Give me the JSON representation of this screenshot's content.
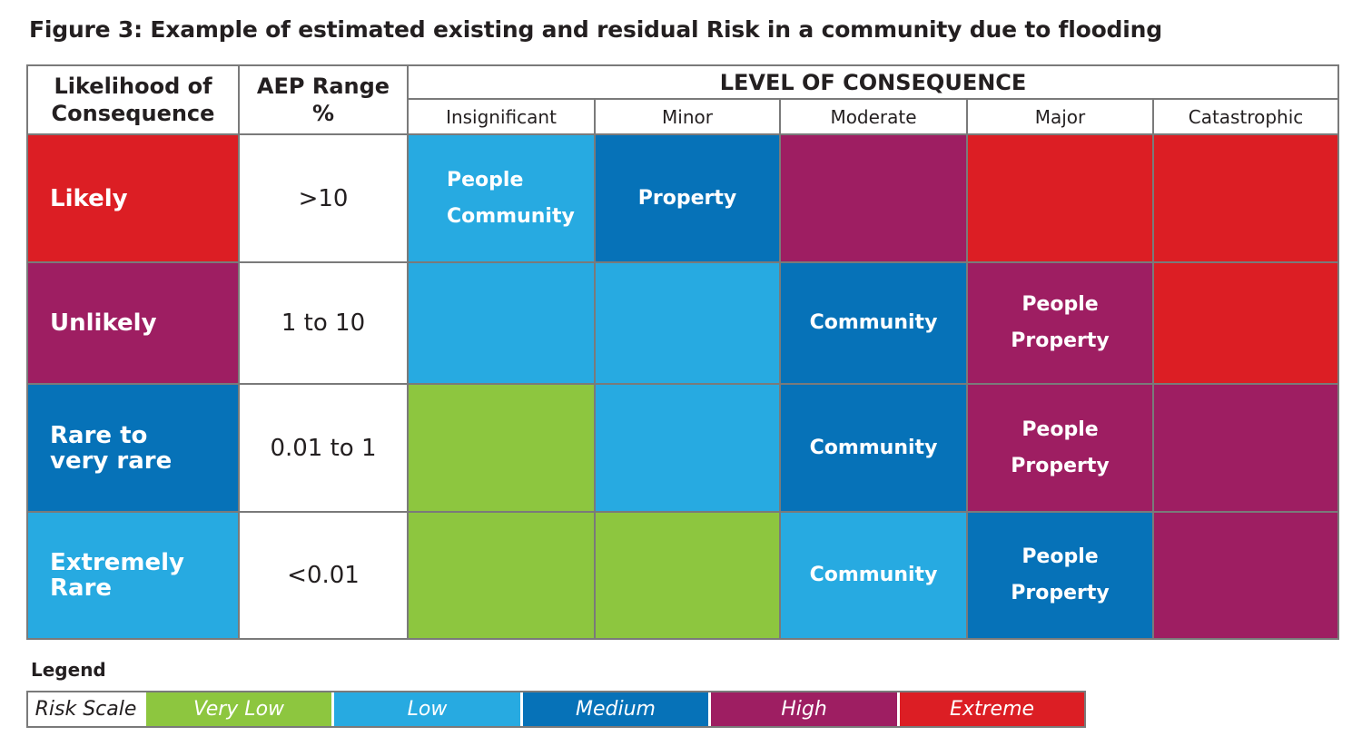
{
  "title": "Figure 3: Example of estimated existing and residual Risk in a community due to flooding",
  "headers": {
    "likelihood_line1": "Likelihood of",
    "likelihood_line2": "Consequence",
    "aep_line1": "AEP Range",
    "aep_line2": "%",
    "level_of_consequence": "LEVEL OF CONSEQUENCE",
    "consequences": [
      "Insignificant",
      "Minor",
      "Moderate",
      "Major",
      "Catastrophic"
    ]
  },
  "rows": [
    {
      "label_lines": [
        "Likely"
      ],
      "aep": ">10",
      "cells": [
        {
          "risk": "Low",
          "items": [
            "People",
            "Community"
          ]
        },
        {
          "risk": "Medium",
          "items": [
            "Property"
          ]
        },
        {
          "risk": "High",
          "items": []
        },
        {
          "risk": "Extreme",
          "items": []
        },
        {
          "risk": "Extreme",
          "items": []
        }
      ]
    },
    {
      "label_lines": [
        "Unlikely"
      ],
      "aep": "1 to 10",
      "cells": [
        {
          "risk": "Low",
          "items": []
        },
        {
          "risk": "Low",
          "items": []
        },
        {
          "risk": "Medium",
          "items": [
            "Community"
          ]
        },
        {
          "risk": "High",
          "items": [
            "People",
            "Property"
          ]
        },
        {
          "risk": "Extreme",
          "items": []
        }
      ]
    },
    {
      "label_lines": [
        "Rare to",
        "very rare"
      ],
      "aep": "0.01 to 1",
      "cells": [
        {
          "risk": "Very Low",
          "items": []
        },
        {
          "risk": "Low",
          "items": []
        },
        {
          "risk": "Medium",
          "items": [
            "Community"
          ]
        },
        {
          "risk": "High",
          "items": [
            "People",
            "Property"
          ]
        },
        {
          "risk": "High",
          "items": []
        }
      ]
    },
    {
      "label_lines": [
        "Extremely",
        "Rare"
      ],
      "aep": "<0.01",
      "cells": [
        {
          "risk": "Very Low",
          "items": []
        },
        {
          "risk": "Very Low",
          "items": []
        },
        {
          "risk": "Low",
          "items": [
            "Community"
          ]
        },
        {
          "risk": "Medium",
          "items": [
            "People",
            "Property"
          ]
        },
        {
          "risk": "High",
          "items": []
        }
      ]
    }
  ],
  "row_label_colors": [
    "Extreme",
    "High",
    "Medium",
    "Low"
  ],
  "legend": {
    "title": "Legend",
    "scale_label": "Risk Scale",
    "levels": [
      "Very Low",
      "Low",
      "Medium",
      "High",
      "Extreme"
    ]
  },
  "colors": {
    "Very Low": "#8dc63f",
    "Low": "#27aae1",
    "Medium": "#0672b8",
    "High": "#9e1e62",
    "Extreme": "#dc1e24"
  }
}
